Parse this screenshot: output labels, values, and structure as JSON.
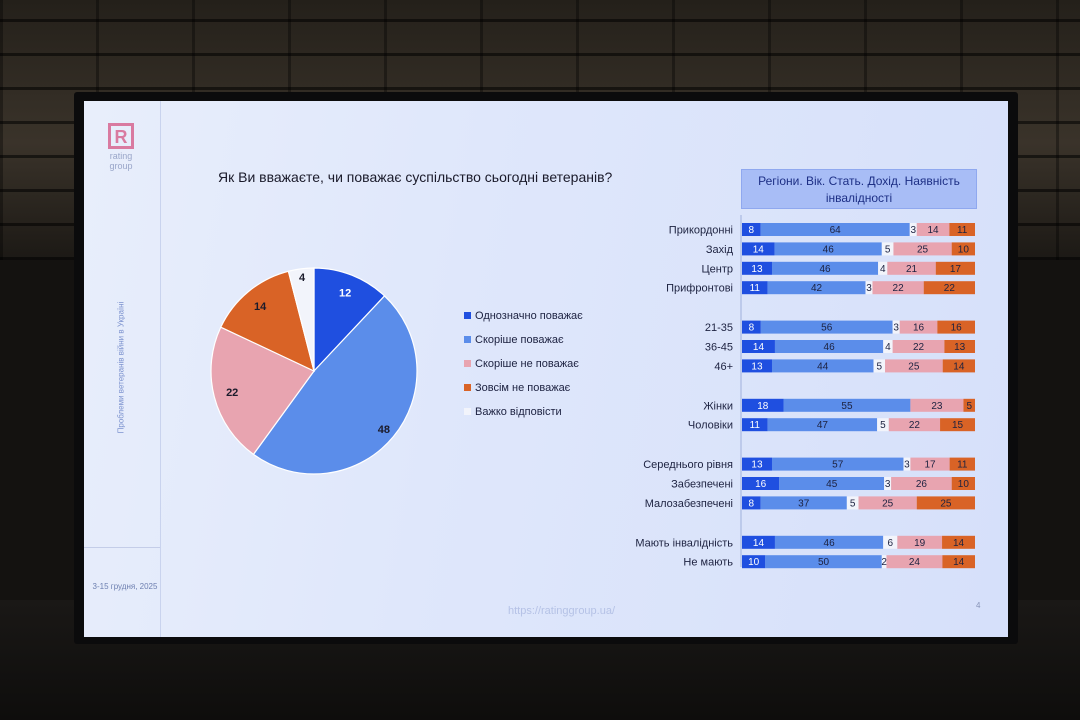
{
  "logo": {
    "brand": "rating group"
  },
  "side": {
    "vertical_text": "Проблеми ветеранів війни в Україні",
    "date": "3-15 грудня, 2025"
  },
  "question": "Як Ви вважаєте, чи поважає суспільство сьогодні ветеранів?",
  "segment_header": "Регіони. Вік. Стать. Дохід. Наявність інвалідності",
  "footer": {
    "url": "https://ratinggroup.ua/",
    "page": "4"
  },
  "colors": {
    "definitely_respects": "#1f4fe0",
    "rather_respects": "#5b8dea",
    "rather_not": "#e8a4b0",
    "not_at_all": "#d96326",
    "hard_to_say": "#f2f4fb"
  },
  "chart_data": [
    {
      "type": "pie",
      "title": "Як Ви вважаєте, чи поважає суспільство сьогодні ветеранів?",
      "categories": [
        "Однозначно поважає",
        "Скоріше поважає",
        "Скоріше не поважає",
        "Зовсім не поважає",
        "Важко відповісти"
      ],
      "values": [
        12,
        48,
        22,
        14,
        4
      ],
      "colors": [
        "#1f4fe0",
        "#5b8dea",
        "#e8a4b0",
        "#d96326",
        "#f2f4fb"
      ],
      "legend": "right"
    },
    {
      "type": "bar",
      "orientation": "horizontal",
      "stacked": true,
      "title": "Регіони. Вік. Стать. Дохід. Наявність інвалідності",
      "groups": [
        {
          "rows": [
            {
              "label": "Прикордонні",
              "values": [
                8,
                64,
                3,
                14,
                11
              ]
            },
            {
              "label": "Захід",
              "values": [
                14,
                46,
                5,
                25,
                10
              ]
            },
            {
              "label": "Центр",
              "values": [
                13,
                46,
                4,
                21,
                17
              ]
            },
            {
              "label": "Прифронтові",
              "values": [
                11,
                42,
                3,
                22,
                22
              ]
            }
          ]
        },
        {
          "rows": [
            {
              "label": "21-35",
              "values": [
                8,
                56,
                3,
                16,
                16
              ]
            },
            {
              "label": "36-45",
              "values": [
                14,
                46,
                4,
                22,
                13
              ]
            },
            {
              "label": "46+",
              "values": [
                13,
                44,
                5,
                25,
                14
              ]
            }
          ]
        },
        {
          "rows": [
            {
              "label": "Жінки",
              "values": [
                18,
                55,
                0,
                23,
                5
              ]
            },
            {
              "label": "Чоловіки",
              "values": [
                11,
                47,
                5,
                22,
                15
              ]
            }
          ]
        },
        {
          "rows": [
            {
              "label": "Середнього рівня",
              "values": [
                13,
                57,
                3,
                17,
                11
              ]
            },
            {
              "label": "Забезпечені",
              "values": [
                16,
                45,
                3,
                26,
                10
              ]
            },
            {
              "label": "Малозабезпечені",
              "values": [
                8,
                37,
                5,
                25,
                25
              ]
            }
          ]
        },
        {
          "rows": [
            {
              "label": "Мають інвалідність",
              "values": [
                14,
                46,
                6,
                19,
                14
              ]
            },
            {
              "label": "Не мають",
              "values": [
                10,
                50,
                2,
                24,
                14
              ]
            }
          ]
        }
      ],
      "segment_order": [
        "Однозначно поважає",
        "Скоріше поважає",
        "Важко відповісти",
        "Скоріше не поважає",
        "Зовсім не поважає"
      ],
      "segment_colors": [
        "#1f4fe0",
        "#5b8dea",
        "#f2f4fb",
        "#e8a4b0",
        "#d96326"
      ],
      "xlim": [
        0,
        100
      ]
    }
  ]
}
